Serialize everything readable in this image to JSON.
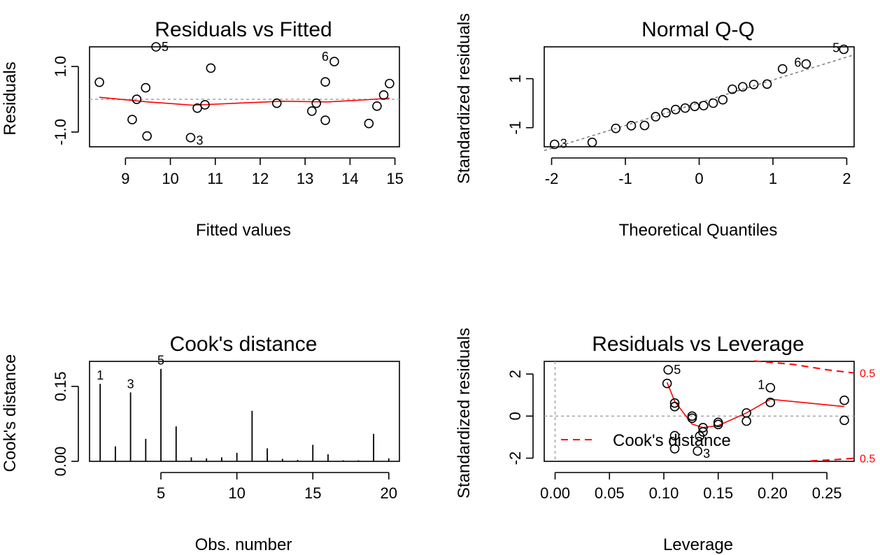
{
  "chart_data": [
    {
      "type": "scatter",
      "title": "Residuals vs Fitted",
      "xlabel": "Fitted values",
      "ylabel": "Residuals",
      "xlim": [
        8.2,
        15.1
      ],
      "ylim": [
        -1.45,
        1.6
      ],
      "xticks": [
        9,
        10,
        11,
        12,
        13,
        14,
        15
      ],
      "yticks": [
        -1.0,
        1.0
      ],
      "yticklabels": [
        "-1.0",
        "1.0"
      ],
      "reference_line": 0,
      "points": [
        {
          "x": 8.42,
          "y": 0.52
        },
        {
          "x": 9.15,
          "y": -0.62
        },
        {
          "x": 9.25,
          "y": 0.0
        },
        {
          "x": 9.45,
          "y": 0.35
        },
        {
          "x": 9.48,
          "y": -1.12
        },
        {
          "x": 9.68,
          "y": 1.6,
          "label": "5"
        },
        {
          "x": 10.45,
          "y": -1.17,
          "label": "3"
        },
        {
          "x": 10.6,
          "y": -0.27
        },
        {
          "x": 10.77,
          "y": -0.17
        },
        {
          "x": 10.9,
          "y": 0.95
        },
        {
          "x": 12.37,
          "y": -0.12
        },
        {
          "x": 13.15,
          "y": -0.36
        },
        {
          "x": 13.25,
          "y": -0.12
        },
        {
          "x": 13.45,
          "y": 0.53
        },
        {
          "x": 13.45,
          "y": -0.64
        },
        {
          "x": 13.65,
          "y": 1.15,
          "label": "6"
        },
        {
          "x": 14.42,
          "y": -0.74
        },
        {
          "x": 14.6,
          "y": -0.21
        },
        {
          "x": 14.75,
          "y": 0.13
        },
        {
          "x": 14.88,
          "y": 0.48
        }
      ],
      "smooth": [
        [
          8.42,
          0.06
        ],
        [
          9.5,
          -0.08
        ],
        [
          10.5,
          -0.18
        ],
        [
          11.5,
          -0.12
        ],
        [
          12.5,
          -0.06
        ],
        [
          13.5,
          -0.08
        ],
        [
          14.3,
          -0.02
        ],
        [
          14.88,
          0.03
        ]
      ],
      "point_labels": [
        "5",
        "3",
        "6"
      ]
    },
    {
      "type": "scatter",
      "title": "Normal Q-Q",
      "xlabel": "Theoretical Quantiles",
      "ylabel": "Standardized residuals",
      "xlim": [
        -2.1,
        2.1
      ],
      "ylim": [
        -1.78,
        2.3
      ],
      "xticks": [
        -2,
        -1,
        0,
        1,
        2
      ],
      "yticks": [
        -1,
        1
      ],
      "yticklabels": [
        "-1",
        "1"
      ],
      "reference_line": {
        "intercept": 0.02,
        "slope": 0.93
      },
      "points": [
        {
          "x": -1.96,
          "y": -1.68,
          "label": "3"
        },
        {
          "x": -1.45,
          "y": -1.6
        },
        {
          "x": -1.13,
          "y": -1.03
        },
        {
          "x": -0.92,
          "y": -0.92
        },
        {
          "x": -0.74,
          "y": -0.91
        },
        {
          "x": -0.59,
          "y": -0.55
        },
        {
          "x": -0.45,
          "y": -0.39
        },
        {
          "x": -0.32,
          "y": -0.26
        },
        {
          "x": -0.19,
          "y": -0.2
        },
        {
          "x": -0.06,
          "y": -0.13
        },
        {
          "x": 0.06,
          "y": -0.1
        },
        {
          "x": 0.19,
          "y": 0.0
        },
        {
          "x": 0.32,
          "y": 0.14
        },
        {
          "x": 0.45,
          "y": 0.57
        },
        {
          "x": 0.59,
          "y": 0.67
        },
        {
          "x": 0.74,
          "y": 0.76
        },
        {
          "x": 0.92,
          "y": 0.78
        },
        {
          "x": 1.13,
          "y": 1.4
        },
        {
          "x": 1.45,
          "y": 1.6,
          "label": "6"
        },
        {
          "x": 1.96,
          "y": 2.2,
          "label": "5"
        }
      ],
      "point_labels": [
        "3",
        "6",
        "5"
      ]
    },
    {
      "type": "bar",
      "title": "Cook's distance",
      "xlabel": "Obs. number",
      "ylabel": "Cook's distance",
      "xlim": [
        0.3,
        20.7
      ],
      "ylim": [
        0,
        0.2
      ],
      "xticks": [
        5,
        10,
        15,
        20
      ],
      "yticks": [
        0.0,
        0.15
      ],
      "yticklabels": [
        "0.00",
        "0.15"
      ],
      "categories": [
        1,
        2,
        3,
        4,
        5,
        6,
        7,
        8,
        9,
        10,
        11,
        12,
        13,
        14,
        15,
        16,
        17,
        18,
        19,
        20
      ],
      "values": [
        0.155,
        0.03,
        0.138,
        0.045,
        0.185,
        0.07,
        0.008,
        0.006,
        0.008,
        0.017,
        0.101,
        0.026,
        0.005,
        0.003,
        0.033,
        0.014,
        0.002,
        0.002,
        0.055,
        0.006
      ],
      "point_labels": [
        {
          "obs": 1,
          "label": "1"
        },
        {
          "obs": 3,
          "label": "3"
        },
        {
          "obs": 5,
          "label": "5"
        }
      ]
    },
    {
      "type": "scatter",
      "title": "Residuals vs Leverage",
      "xlabel": "Leverage",
      "ylabel": "Standardized residuals",
      "xlim": [
        -0.01,
        0.275
      ],
      "ylim": [
        -2.15,
        2.6
      ],
      "xticks": [
        0.0,
        0.05,
        0.1,
        0.15,
        0.2,
        0.25
      ],
      "xticklabels": [
        "0.00",
        "0.05",
        "0.10",
        "0.15",
        "0.20",
        "0.25"
      ],
      "yticks": [
        -2,
        0,
        2
      ],
      "yticklabels": [
        "-2",
        "0",
        "2"
      ],
      "reference_line": 0,
      "points": [
        {
          "x": 0.104,
          "y": 2.2,
          "label": "5"
        },
        {
          "x": 0.103,
          "y": 1.55
        },
        {
          "x": 0.11,
          "y": 0.45
        },
        {
          "x": 0.11,
          "y": 0.62
        },
        {
          "x": 0.11,
          "y": -0.93
        },
        {
          "x": 0.11,
          "y": -1.55
        },
        {
          "x": 0.126,
          "y": 0.0
        },
        {
          "x": 0.126,
          "y": -0.1
        },
        {
          "x": 0.133,
          "y": -0.95
        },
        {
          "x": 0.131,
          "y": -1.66,
          "label": "3"
        },
        {
          "x": 0.136,
          "y": -0.55
        },
        {
          "x": 0.136,
          "y": -0.75
        },
        {
          "x": 0.15,
          "y": -0.3
        },
        {
          "x": 0.15,
          "y": -0.4
        },
        {
          "x": 0.176,
          "y": 0.15
        },
        {
          "x": 0.176,
          "y": -0.24
        },
        {
          "x": 0.198,
          "y": 1.35,
          "label": "1"
        },
        {
          "x": 0.198,
          "y": 0.65
        },
        {
          "x": 0.266,
          "y": 0.75
        },
        {
          "x": 0.266,
          "y": -0.2
        }
      ],
      "smooth": [
        [
          0.103,
          1.6
        ],
        [
          0.11,
          0.7
        ],
        [
          0.126,
          -0.38
        ],
        [
          0.136,
          -0.55
        ],
        [
          0.15,
          -0.45
        ],
        [
          0.176,
          0.15
        ],
        [
          0.198,
          0.8
        ],
        [
          0.266,
          0.45
        ]
      ],
      "cooks_contours": [
        [
          [
            0.183,
            2.62
          ],
          [
            0.22,
            2.45
          ],
          [
            0.25,
            2.2
          ],
          [
            0.275,
            2.05
          ]
        ],
        [
          [
            0.235,
            -2.13
          ],
          [
            0.26,
            -2.06
          ],
          [
            0.275,
            -2.0
          ]
        ]
      ],
      "contour_labels": [
        "0.5",
        "0.5"
      ],
      "legend": {
        "entries": [
          "Cook's distance"
        ],
        "placement": "bottom-left"
      },
      "point_labels": [
        "5",
        "3",
        "1"
      ]
    }
  ]
}
